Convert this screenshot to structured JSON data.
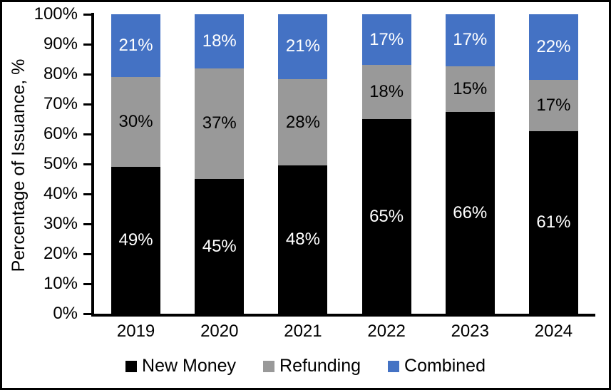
{
  "chart_data": {
    "type": "bar",
    "stacked": true,
    "percent_stacked": true,
    "title": "",
    "xlabel": "",
    "ylabel": "Percentage of Issuance, %",
    "categories": [
      "2019",
      "2020",
      "2021",
      "2022",
      "2023",
      "2024"
    ],
    "series": [
      {
        "name": "New Money",
        "color": "#000000",
        "label_color": "#ffffff",
        "values": [
          49,
          45,
          48,
          65,
          66,
          61
        ]
      },
      {
        "name": "Refunding",
        "color": "#999999",
        "label_color": "#000000",
        "values": [
          30,
          37,
          28,
          18,
          15,
          17
        ]
      },
      {
        "name": "Combined",
        "color": "#4472c4",
        "label_color": "#ffffff",
        "values": [
          21,
          18,
          21,
          17,
          17,
          22
        ]
      }
    ],
    "data_label_suffix": "%",
    "y_ticks": [
      "0%",
      "10%",
      "20%",
      "30%",
      "40%",
      "50%",
      "60%",
      "70%",
      "80%",
      "90%",
      "100%"
    ],
    "ylim": [
      0,
      100
    ],
    "grid": false,
    "legend_position": "bottom"
  }
}
